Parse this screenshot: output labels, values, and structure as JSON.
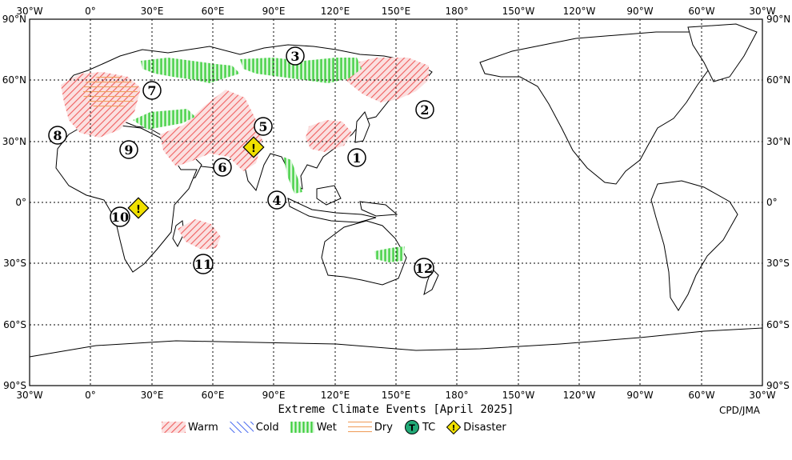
{
  "map": {
    "lon_labels": [
      "30°W",
      "0°",
      "30°E",
      "60°E",
      "90°E",
      "120°E",
      "150°E",
      "180°",
      "150°W",
      "120°W",
      "90°W",
      "60°W",
      "30°W"
    ],
    "lat_labels": [
      "90°N",
      "60°N",
      "30°N",
      "0°",
      "30°S",
      "60°S",
      "90°S"
    ]
  },
  "title": "Extreme Climate Events [April 2025]",
  "credit": "CPD/JMA",
  "legend": {
    "warm": "Warm",
    "cold": "Cold",
    "wet": "Wet",
    "dry": "Dry",
    "tc": "TC",
    "tc_symbol": "T",
    "disaster": "Disaster",
    "disaster_symbol": "!"
  },
  "colors": {
    "warm": "#f08080",
    "cold": "#4a6cf0",
    "wet": "#5fd35f",
    "dry": "#f4a460",
    "tc": "#22aa77",
    "disaster": "#f0e000"
  },
  "events": [
    {
      "label": "1"
    },
    {
      "label": "2"
    },
    {
      "label": "3"
    },
    {
      "label": "4"
    },
    {
      "label": "5"
    },
    {
      "label": "6"
    },
    {
      "label": "7"
    },
    {
      "label": "8"
    },
    {
      "label": "9"
    },
    {
      "label": "10"
    },
    {
      "label": "11"
    },
    {
      "label": "12"
    }
  ],
  "disaster_markers": [
    {
      "symbol": "!"
    },
    {
      "symbol": "!"
    }
  ]
}
